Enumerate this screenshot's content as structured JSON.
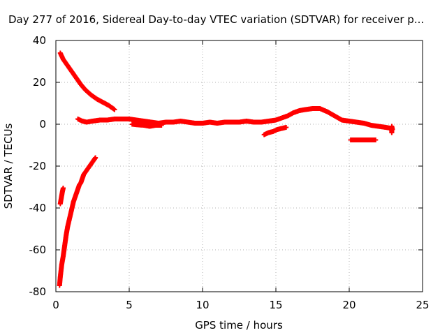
{
  "chart_data": {
    "type": "scatter",
    "title": "Day 277 of 2016, Sidereal Day-to-day VTEC variation (SDTVAR) for receiver p...",
    "xlabel": "GPS time / hours",
    "ylabel": "SDTVAR / TECUs",
    "xlim": [
      0,
      25
    ],
    "ylim": [
      -80,
      40
    ],
    "xticks": [
      "0",
      "5",
      "10",
      "15",
      "20",
      "25"
    ],
    "yticks": [
      "40",
      "20",
      "0",
      "-20",
      "-40",
      "-60",
      "-80"
    ],
    "grid": true,
    "legend": "none",
    "marker": "+",
    "color": "#ff0000",
    "series": [
      {
        "points": [
          [
            0.3,
            34
          ],
          [
            0.5,
            31
          ],
          [
            0.8,
            28
          ],
          [
            1.1,
            25
          ],
          [
            1.4,
            22
          ],
          [
            1.7,
            19
          ],
          [
            2.0,
            16.5
          ],
          [
            2.4,
            14
          ],
          [
            2.8,
            12
          ],
          [
            3.2,
            10.5
          ],
          [
            3.6,
            9
          ],
          [
            4.0,
            7
          ]
        ]
      },
      {
        "points": [
          [
            0.25,
            -77
          ],
          [
            0.3,
            -73
          ],
          [
            0.35,
            -70
          ],
          [
            0.4,
            -67
          ],
          [
            0.5,
            -63
          ],
          [
            0.6,
            -58
          ],
          [
            0.7,
            -53
          ],
          [
            0.8,
            -49
          ],
          [
            0.9,
            -46
          ],
          [
            1.0,
            -43
          ],
          [
            1.1,
            -40
          ],
          [
            1.2,
            -37
          ],
          [
            1.3,
            -35
          ],
          [
            1.4,
            -33
          ],
          [
            1.5,
            -31
          ],
          [
            1.6,
            -29
          ],
          [
            1.7,
            -28
          ],
          [
            1.8,
            -26
          ],
          [
            1.9,
            -24
          ],
          [
            2.0,
            -23
          ],
          [
            2.2,
            -21
          ],
          [
            2.4,
            -19
          ],
          [
            2.6,
            -17
          ],
          [
            2.7,
            -16
          ]
        ]
      },
      {
        "points": [
          [
            0.3,
            -38
          ],
          [
            0.35,
            -36
          ],
          [
            0.4,
            -34
          ],
          [
            0.45,
            -32
          ],
          [
            0.5,
            -30.5
          ]
        ]
      },
      {
        "points": [
          [
            1.5,
            2.5
          ],
          [
            1.8,
            1.5
          ],
          [
            2.1,
            1
          ],
          [
            2.5,
            1.5
          ],
          [
            3.0,
            2
          ],
          [
            3.5,
            2
          ],
          [
            4.0,
            2.5
          ],
          [
            4.5,
            2.5
          ],
          [
            5.0,
            2.5
          ],
          [
            5.5,
            2
          ],
          [
            6.0,
            1.5
          ],
          [
            6.5,
            1
          ],
          [
            7.0,
            0.5
          ],
          [
            7.5,
            1
          ],
          [
            8.0,
            1
          ],
          [
            8.5,
            1.5
          ],
          [
            9.0,
            1
          ],
          [
            9.5,
            0.5
          ],
          [
            10.0,
            0.5
          ],
          [
            10.5,
            1
          ],
          [
            11.0,
            0.5
          ],
          [
            11.5,
            1
          ],
          [
            12.0,
            1
          ],
          [
            12.5,
            1
          ],
          [
            13.0,
            1.5
          ],
          [
            13.5,
            1
          ],
          [
            14.0,
            1
          ],
          [
            14.5,
            1.5
          ],
          [
            15.0,
            2
          ],
          [
            15.4,
            3
          ],
          [
            15.8,
            4
          ],
          [
            16.2,
            5.5
          ],
          [
            16.6,
            6.5
          ],
          [
            17.0,
            7
          ],
          [
            17.5,
            7.5
          ],
          [
            18.0,
            7.5
          ],
          [
            18.5,
            6
          ],
          [
            19.0,
            4
          ],
          [
            19.5,
            2
          ],
          [
            20.0,
            1.5
          ],
          [
            20.5,
            1
          ],
          [
            21.0,
            0.5
          ],
          [
            21.5,
            -0.5
          ],
          [
            22.0,
            -1
          ],
          [
            22.5,
            -1.5
          ],
          [
            22.9,
            -2
          ]
        ]
      },
      {
        "points": [
          [
            5.2,
            0
          ],
          [
            5.6,
            -0.3
          ],
          [
            6.0,
            -0.5
          ],
          [
            6.4,
            -1
          ],
          [
            6.8,
            -0.5
          ],
          [
            7.2,
            -0.5
          ]
        ]
      },
      {
        "points": [
          [
            14.2,
            -5
          ],
          [
            14.5,
            -4
          ],
          [
            14.8,
            -3.5
          ],
          [
            15.1,
            -2.5
          ],
          [
            15.4,
            -2
          ],
          [
            15.7,
            -1.5
          ]
        ]
      },
      {
        "points": [
          [
            20.1,
            -7.5
          ],
          [
            20.4,
            -7.5
          ],
          [
            20.7,
            -7.5
          ],
          [
            21.0,
            -7.5
          ],
          [
            21.3,
            -7.5
          ],
          [
            21.6,
            -7.5
          ],
          [
            21.8,
            -7.5
          ]
        ]
      },
      {
        "points": [
          [
            22.9,
            -4
          ],
          [
            22.9,
            -3
          ],
          [
            22.9,
            -1
          ],
          [
            22.95,
            -2.5
          ]
        ]
      }
    ]
  }
}
